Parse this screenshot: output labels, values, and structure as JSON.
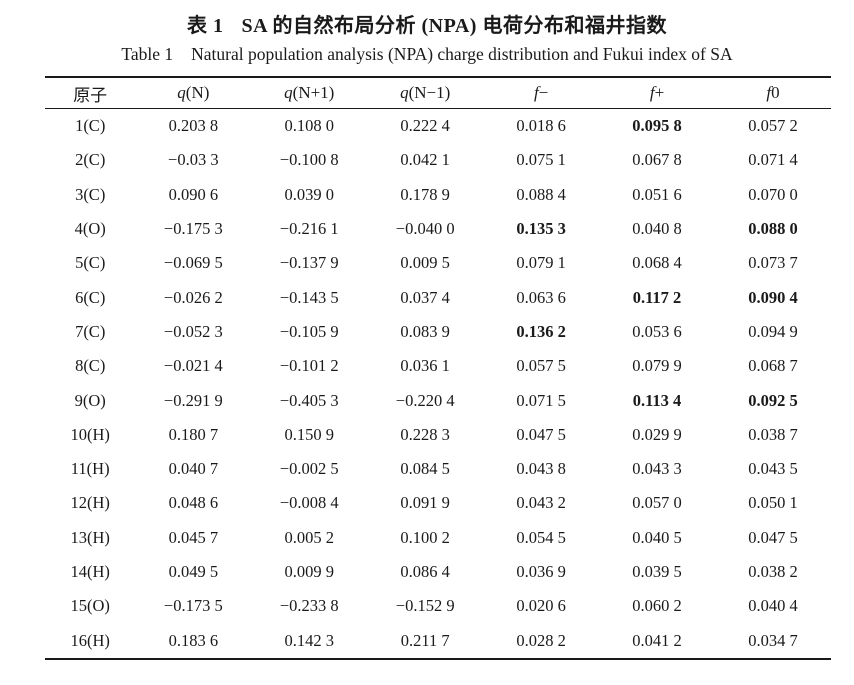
{
  "captions": {
    "zh_label": "表 1",
    "zh_text": "SA 的自然布局分析 (NPA) 电荷分布和福井指数",
    "en_label": "Table 1",
    "en_text": "Natural population analysis (NPA) charge distribution and Fukui index of SA"
  },
  "table": {
    "columns": [
      {
        "lead": "",
        "rest": "原子"
      },
      {
        "lead": "q",
        "rest": "(N)"
      },
      {
        "lead": "q",
        "rest": "(N+1)"
      },
      {
        "lead": "q",
        "rest": "(N−1)"
      },
      {
        "lead": "f",
        "rest": "−"
      },
      {
        "lead": "f",
        "rest": "+"
      },
      {
        "lead": "f",
        "rest": "0"
      }
    ],
    "rows": [
      {
        "atom": "1(C)",
        "values": [
          "0.203 8",
          "0.108 0",
          "0.222 4",
          "0.018 6",
          "0.095 8",
          "0.057 2"
        ],
        "bold": [
          false,
          false,
          false,
          false,
          true,
          false
        ]
      },
      {
        "atom": "2(C)",
        "values": [
          "−0.03 3",
          "−0.100 8",
          "0.042 1",
          "0.075 1",
          "0.067 8",
          "0.071 4"
        ],
        "bold": [
          false,
          false,
          false,
          false,
          false,
          false
        ]
      },
      {
        "atom": "3(C)",
        "values": [
          "0.090 6",
          "0.039 0",
          "0.178 9",
          "0.088 4",
          "0.051 6",
          "0.070 0"
        ],
        "bold": [
          false,
          false,
          false,
          false,
          false,
          false
        ]
      },
      {
        "atom": "4(O)",
        "values": [
          "−0.175 3",
          "−0.216 1",
          "−0.040 0",
          "0.135 3",
          "0.040 8",
          "0.088 0"
        ],
        "bold": [
          false,
          false,
          false,
          true,
          false,
          true
        ]
      },
      {
        "atom": "5(C)",
        "values": [
          "−0.069 5",
          "−0.137 9",
          "0.009 5",
          "0.079 1",
          "0.068 4",
          "0.073 7"
        ],
        "bold": [
          false,
          false,
          false,
          false,
          false,
          false
        ]
      },
      {
        "atom": "6(C)",
        "values": [
          "−0.026 2",
          "−0.143 5",
          "0.037 4",
          "0.063 6",
          "0.117 2",
          "0.090 4"
        ],
        "bold": [
          false,
          false,
          false,
          false,
          true,
          true
        ]
      },
      {
        "atom": "7(C)",
        "values": [
          "−0.052 3",
          "−0.105 9",
          "0.083 9",
          "0.136 2",
          "0.053 6",
          "0.094 9"
        ],
        "bold": [
          false,
          false,
          false,
          true,
          false,
          false
        ]
      },
      {
        "atom": "8(C)",
        "values": [
          "−0.021 4",
          "−0.101 2",
          "0.036 1",
          "0.057 5",
          "0.079 9",
          "0.068 7"
        ],
        "bold": [
          false,
          false,
          false,
          false,
          false,
          false
        ]
      },
      {
        "atom": "9(O)",
        "values": [
          "−0.291 9",
          "−0.405 3",
          "−0.220 4",
          "0.071 5",
          "0.113 4",
          "0.092 5"
        ],
        "bold": [
          false,
          false,
          false,
          false,
          true,
          true
        ]
      },
      {
        "atom": "10(H)",
        "values": [
          "0.180 7",
          "0.150 9",
          "0.228 3",
          "0.047 5",
          "0.029 9",
          "0.038 7"
        ],
        "bold": [
          false,
          false,
          false,
          false,
          false,
          false
        ]
      },
      {
        "atom": "11(H)",
        "values": [
          "0.040 7",
          "−0.002 5",
          "0.084 5",
          "0.043 8",
          "0.043 3",
          "0.043 5"
        ],
        "bold": [
          false,
          false,
          false,
          false,
          false,
          false
        ]
      },
      {
        "atom": "12(H)",
        "values": [
          "0.048 6",
          "−0.008 4",
          "0.091 9",
          "0.043 2",
          "0.057 0",
          "0.050 1"
        ],
        "bold": [
          false,
          false,
          false,
          false,
          false,
          false
        ]
      },
      {
        "atom": "13(H)",
        "values": [
          "0.045 7",
          "0.005 2",
          "0.100 2",
          "0.054 5",
          "0.040 5",
          "0.047 5"
        ],
        "bold": [
          false,
          false,
          false,
          false,
          false,
          false
        ]
      },
      {
        "atom": "14(H)",
        "values": [
          "0.049 5",
          "0.009 9",
          "0.086 4",
          "0.036 9",
          "0.039 5",
          "0.038 2"
        ],
        "bold": [
          false,
          false,
          false,
          false,
          false,
          false
        ]
      },
      {
        "atom": "15(O)",
        "values": [
          "−0.173 5",
          "−0.233 8",
          "−0.152 9",
          "0.020 6",
          "0.060 2",
          "0.040 4"
        ],
        "bold": [
          false,
          false,
          false,
          false,
          false,
          false
        ]
      },
      {
        "atom": "16(H)",
        "values": [
          "0.183 6",
          "0.142 3",
          "0.211 7",
          "0.028 2",
          "0.041 2",
          "0.034 7"
        ],
        "bold": [
          false,
          false,
          false,
          false,
          false,
          false
        ]
      }
    ]
  }
}
